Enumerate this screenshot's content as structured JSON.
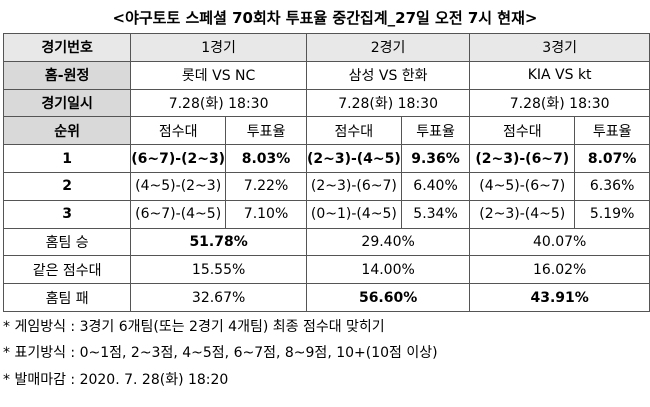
{
  "title": "<야구토토 스페셜 70회차 투표율 중간집계_27일 오전 7시 현재>",
  "table": {
    "game_no": {
      "label": "경기번호",
      "values": [
        "1경기",
        "2경기",
        "3경기"
      ]
    },
    "matchup": {
      "label": "홈-원정",
      "values": [
        "롯데 VS NC",
        "삼성 VS 한화",
        "KIA VS kt"
      ]
    },
    "date": {
      "label": "경기일시",
      "values": [
        "7.28(화) 18:30",
        "7.28(화) 18:30",
        "7.28(화) 18:30"
      ]
    },
    "rank_header": {
      "label": "순위",
      "values": [
        "점수대",
        "투표율",
        "점수대",
        "투표율",
        "점수대",
        "투표율"
      ]
    },
    "ranks": [
      {
        "label": "1",
        "values": [
          "(6~7)-(2~3)",
          "8.03%",
          "(2~3)-(4~5)",
          "9.36%",
          "(2~3)-(6~7)",
          "8.07%"
        ]
      },
      {
        "label": "2",
        "values": [
          "(4~5)-(2~3)",
          "7.22%",
          "(2~3)-(6~7)",
          "6.40%",
          "(4~5)-(6~7)",
          "6.36%"
        ]
      },
      {
        "label": "3",
        "values": [
          "(6~7)-(4~5)",
          "7.10%",
          "(0~1)-(4~5)",
          "5.34%",
          "(2~3)-(4~5)",
          "5.19%"
        ]
      }
    ],
    "results": [
      {
        "label": "홈팀 승",
        "values": [
          "51.78%",
          "29.40%",
          "40.07%"
        ]
      },
      {
        "label": "같은 점수대",
        "values": [
          "15.55%",
          "14.00%",
          "16.02%"
        ]
      },
      {
        "label": "홈팀 패",
        "values": [
          "32.67%",
          "56.60%",
          "43.91%"
        ]
      }
    ]
  },
  "notes": [
    "* 게임방식 : 3경기 6개팀(또는 2경기 4개팀) 최종 점수대 맞히기",
    "* 표기방식 : 0~1점, 2~3점, 4~5점, 6~7점, 8~9점, 10+(10점 이상)",
    "* 발매마감 : 2020. 7. 28(화) 18:20"
  ]
}
